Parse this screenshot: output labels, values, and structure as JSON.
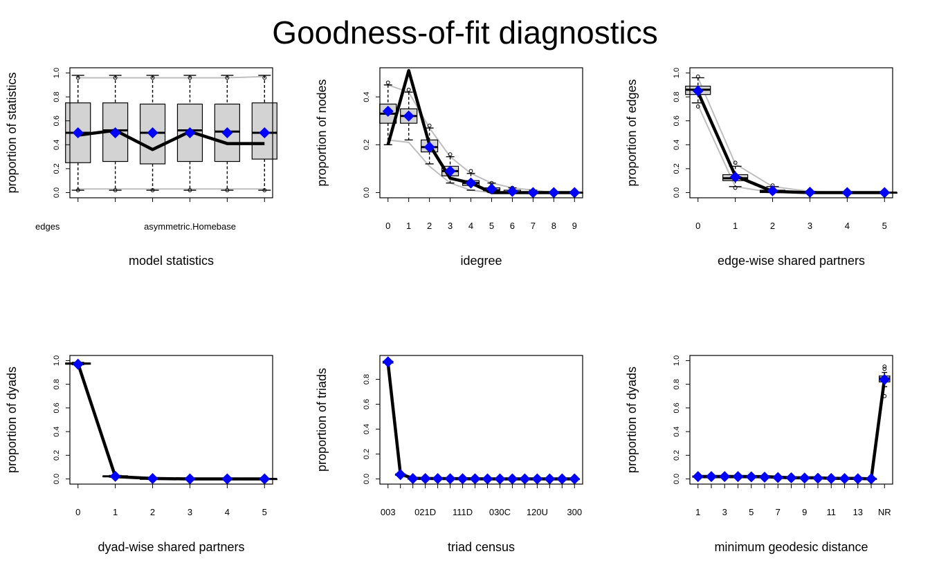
{
  "title": "Goodness-of-fit diagnostics",
  "colors": {
    "observed": "#000000",
    "model_mean": "#0000ff",
    "box_fill": "#d3d3d3",
    "sim_range": "#bebebe"
  },
  "chart_data": [
    {
      "type": "box",
      "xlabel": "model statistics",
      "ylabel": "proportion of statistics",
      "ylim": [
        0,
        1
      ],
      "yticks": [
        0.0,
        0.2,
        0.4,
        0.6,
        0.8,
        1.0
      ],
      "ytick_labels": [
        "0.0",
        "0.2",
        "0.4",
        "0.6",
        "0.8",
        "1.0"
      ],
      "xtick_labels": [
        "edges",
        "",
        "asymmetric.Homebase",
        "",
        "",
        ""
      ],
      "x": [
        1,
        2,
        3,
        4,
        5,
        6
      ],
      "box": {
        "q1": [
          0.25,
          0.26,
          0.24,
          0.26,
          0.26,
          0.28
        ],
        "median": [
          0.5,
          0.52,
          0.5,
          0.52,
          0.51,
          0.5
        ],
        "q3": [
          0.75,
          0.75,
          0.74,
          0.74,
          0.74,
          0.75
        ],
        "whisker_low": [
          0.02,
          0.02,
          0.02,
          0.02,
          0.02,
          0.02
        ],
        "whisker_high": [
          0.98,
          0.98,
          0.98,
          0.98,
          0.98,
          0.98
        ]
      },
      "outliers": [
        [
          0.02,
          0.96
        ],
        [
          0.02,
          0.96
        ],
        [
          0.02,
          0.96
        ],
        [
          0.02,
          0.96
        ],
        [
          0.02,
          0.96
        ],
        [
          0.02,
          0.96
        ]
      ],
      "observed": [
        0.48,
        0.52,
        0.36,
        0.51,
        0.41,
        0.41
      ],
      "model_mean": [
        0.5,
        0.5,
        0.5,
        0.5,
        0.5,
        0.5
      ],
      "sim_upper": [
        0.96,
        0.96,
        0.96,
        0.96,
        0.96,
        0.97
      ],
      "sim_lower": [
        0.03,
        0.03,
        0.03,
        0.03,
        0.03,
        0.03
      ]
    },
    {
      "type": "box",
      "xlabel": "idegree",
      "ylabel": "proportion of nodes",
      "ylim": [
        0,
        0.5
      ],
      "yticks": [
        0.0,
        0.2,
        0.4
      ],
      "ytick_labels": [
        "0.0",
        "0.2",
        "0.4"
      ],
      "xtick_labels": [
        "0",
        "1",
        "2",
        "3",
        "4",
        "5",
        "6",
        "7",
        "8",
        "9"
      ],
      "x": [
        1,
        2,
        3,
        4,
        5,
        6,
        7,
        8,
        9,
        10
      ],
      "box": {
        "q1": [
          0.29,
          0.29,
          0.17,
          0.07,
          0.03,
          0.01,
          0.0,
          0.0,
          0.0,
          0.0
        ],
        "median": [
          0.33,
          0.32,
          0.19,
          0.09,
          0.04,
          0.01,
          0.0,
          0.0,
          0.0,
          0.0
        ],
        "q3": [
          0.37,
          0.35,
          0.22,
          0.11,
          0.05,
          0.02,
          0.01,
          0.0,
          0.0,
          0.0
        ],
        "whisker_low": [
          0.2,
          0.22,
          0.12,
          0.04,
          0.01,
          0.0,
          0.0,
          0.0,
          0.0,
          0.0
        ],
        "whisker_high": [
          0.45,
          0.42,
          0.27,
          0.15,
          0.08,
          0.04,
          0.02,
          0.01,
          0.0,
          0.0
        ]
      },
      "outliers": [
        [
          0.46
        ],
        [
          0.43
        ],
        [
          0.28
        ],
        [
          0.16
        ],
        [
          0.09
        ],
        [
          0.04
        ],
        [
          0.02
        ],
        [
          0.01
        ],
        [],
        []
      ],
      "observed": [
        0.2,
        0.51,
        0.2,
        0.06,
        0.04,
        0.0,
        0.0,
        0.0,
        0.0,
        0.0
      ],
      "model_mean": [
        0.34,
        0.32,
        0.19,
        0.09,
        0.04,
        0.015,
        0.005,
        0.0,
        0.0,
        0.0
      ],
      "sim_upper": [
        0.45,
        0.42,
        0.27,
        0.15,
        0.08,
        0.04,
        0.02,
        0.01,
        0.0,
        0.0
      ],
      "sim_lower": [
        0.22,
        0.21,
        0.11,
        0.04,
        0.01,
        0.0,
        0.0,
        0.0,
        0.0,
        0.0
      ]
    },
    {
      "type": "box",
      "xlabel": "edge-wise shared partners",
      "ylabel": "proportion of edges",
      "ylim": [
        0,
        1
      ],
      "yticks": [
        0.0,
        0.2,
        0.4,
        0.6,
        0.8,
        1.0
      ],
      "ytick_labels": [
        "0.0",
        "0.2",
        "0.4",
        "0.6",
        "0.8",
        "1.0"
      ],
      "xtick_labels": [
        "0",
        "1",
        "2",
        "3",
        "4",
        "5"
      ],
      "x": [
        1,
        2,
        3,
        4,
        5,
        6
      ],
      "box": {
        "q1": [
          0.82,
          0.1,
          0.0,
          0.0,
          0.0,
          0.0
        ],
        "median": [
          0.86,
          0.12,
          0.01,
          0.0,
          0.0,
          0.0
        ],
        "q3": [
          0.89,
          0.15,
          0.02,
          0.0,
          0.0,
          0.0
        ],
        "whisker_low": [
          0.75,
          0.05,
          0.0,
          0.0,
          0.0,
          0.0
        ],
        "whisker_high": [
          0.96,
          0.22,
          0.05,
          0.01,
          0.0,
          0.0
        ]
      },
      "outliers": [
        [
          0.72,
          0.97
        ],
        [
          0.04,
          0.25
        ],
        [
          0.06
        ],
        [],
        [],
        []
      ],
      "observed": [
        0.84,
        0.14,
        0.01,
        0.0,
        0.0,
        0.0
      ],
      "model_mean": [
        0.85,
        0.13,
        0.015,
        0.003,
        0.0,
        0.0
      ],
      "sim_upper": [
        0.96,
        0.24,
        0.05,
        0.01,
        0.0,
        0.0
      ],
      "sim_lower": [
        0.73,
        0.05,
        0.0,
        0.0,
        0.0,
        0.0
      ]
    },
    {
      "type": "box",
      "xlabel": "dyad-wise shared partners",
      "ylabel": "proportion of dyads",
      "ylim": [
        0,
        1
      ],
      "yticks": [
        0.0,
        0.2,
        0.4,
        0.6,
        0.8,
        1.0
      ],
      "ytick_labels": [
        "0.0",
        "0.2",
        "0.4",
        "0.6",
        "0.8",
        "1.0"
      ],
      "xtick_labels": [
        "0",
        "1",
        "2",
        "3",
        "4",
        "5"
      ],
      "x": [
        1,
        2,
        3,
        4,
        5,
        6
      ],
      "box": {
        "q1": [
          0.97,
          0.02,
          0.0,
          0.0,
          0.0,
          0.0
        ],
        "median": [
          0.975,
          0.022,
          0.002,
          0.0,
          0.0,
          0.0
        ],
        "q3": [
          0.98,
          0.025,
          0.003,
          0.0,
          0.0,
          0.0
        ],
        "whisker_low": [
          0.965,
          0.015,
          0.0,
          0.0,
          0.0,
          0.0
        ],
        "whisker_high": [
          0.985,
          0.03,
          0.005,
          0.0,
          0.0,
          0.0
        ]
      },
      "outliers": [
        [],
        [],
        [],
        [],
        [],
        []
      ],
      "observed": [
        0.975,
        0.02,
        0.004,
        0.0,
        0.0,
        0.0
      ],
      "model_mean": [
        0.97,
        0.022,
        0.003,
        0.0,
        0.0,
        0.0
      ],
      "sim_upper": [
        0.985,
        0.03,
        0.005,
        0.0,
        0.0,
        0.0
      ],
      "sim_lower": [
        0.965,
        0.015,
        0.0,
        0.0,
        0.0,
        0.0
      ]
    },
    {
      "type": "box",
      "xlabel": "triad census",
      "ylabel": "proportion of triads",
      "ylim": [
        0,
        0.95
      ],
      "yticks": [
        0.0,
        0.2,
        0.4,
        0.6,
        0.8
      ],
      "ytick_labels": [
        "0.0",
        "0.2",
        "0.4",
        "0.6",
        "0.8"
      ],
      "xtick_labels": [
        "003",
        "",
        "",
        "021D",
        "",
        "",
        "111D",
        "",
        "",
        "030C",
        "",
        "",
        "120U",
        "",
        "",
        "300"
      ],
      "x": [
        1,
        2,
        3,
        4,
        5,
        6,
        7,
        8,
        9,
        10,
        11,
        12,
        13,
        14,
        15,
        16
      ],
      "box": {
        "q1": [
          0.93,
          0.03,
          0.0,
          0.0,
          0.0,
          0.0,
          0.0,
          0.0,
          0.0,
          0.0,
          0.0,
          0.0,
          0.0,
          0.0,
          0.0,
          0.0
        ],
        "median": [
          0.94,
          0.035,
          0.003,
          0.003,
          0.003,
          0.002,
          0.002,
          0.001,
          0.0,
          0.0,
          0.0,
          0.0,
          0.0,
          0.0,
          0.0,
          0.0
        ],
        "q3": [
          0.945,
          0.04,
          0.005,
          0.005,
          0.005,
          0.003,
          0.003,
          0.002,
          0.0,
          0.0,
          0.0,
          0.0,
          0.0,
          0.0,
          0.0,
          0.0
        ],
        "whisker_low": [
          0.92,
          0.025,
          0.0,
          0.0,
          0.0,
          0.0,
          0.0,
          0.0,
          0.0,
          0.0,
          0.0,
          0.0,
          0.0,
          0.0,
          0.0,
          0.0
        ],
        "whisker_high": [
          0.95,
          0.045,
          0.008,
          0.008,
          0.008,
          0.005,
          0.005,
          0.003,
          0.0,
          0.0,
          0.0,
          0.0,
          0.0,
          0.0,
          0.0,
          0.0
        ]
      },
      "outliers": [
        [],
        [],
        [],
        [],
        [],
        [],
        [],
        [],
        [],
        [],
        [],
        [],
        [],
        [],
        [],
        []
      ],
      "observed": [
        0.93,
        0.04,
        0.005,
        0.004,
        0.003,
        0.003,
        0.002,
        0.001,
        0.0,
        0.0,
        0.0,
        0.0,
        0.0,
        0.0,
        0.0,
        0.0
      ],
      "model_mean": [
        0.94,
        0.035,
        0.003,
        0.003,
        0.003,
        0.002,
        0.002,
        0.001,
        0.0,
        0.0,
        0.0,
        0.0,
        0.0,
        0.0,
        0.0,
        0.0
      ],
      "sim_upper": [
        0.95,
        0.045,
        0.008,
        0.008,
        0.008,
        0.005,
        0.005,
        0.003,
        0.0,
        0.0,
        0.0,
        0.0,
        0.0,
        0.0,
        0.0,
        0.0
      ],
      "sim_lower": [
        0.92,
        0.025,
        0.0,
        0.0,
        0.0,
        0.0,
        0.0,
        0.0,
        0.0,
        0.0,
        0.0,
        0.0,
        0.0,
        0.0,
        0.0,
        0.0
      ]
    },
    {
      "type": "box",
      "xlabel": "minimum geodesic distance",
      "ylabel": "proportion of dyads",
      "ylim": [
        0,
        1
      ],
      "yticks": [
        0.0,
        0.2,
        0.4,
        0.6,
        0.8,
        1.0
      ],
      "ytick_labels": [
        "0.0",
        "0.2",
        "0.4",
        "0.6",
        "0.8",
        "1.0"
      ],
      "xtick_labels": [
        "1",
        "",
        "3",
        "",
        "5",
        "",
        "7",
        "",
        "9",
        "",
        "11",
        "",
        "13",
        "",
        "NR"
      ],
      "x": [
        1,
        2,
        3,
        4,
        5,
        6,
        7,
        8,
        9,
        10,
        11,
        12,
        13,
        14,
        15
      ],
      "box": {
        "q1": [
          0.015,
          0.015,
          0.015,
          0.015,
          0.012,
          0.01,
          0.008,
          0.006,
          0.005,
          0.004,
          0.003,
          0.002,
          0.001,
          0.0,
          0.82
        ],
        "median": [
          0.02,
          0.02,
          0.02,
          0.02,
          0.018,
          0.015,
          0.012,
          0.01,
          0.008,
          0.006,
          0.004,
          0.003,
          0.002,
          0.001,
          0.85
        ],
        "q3": [
          0.025,
          0.025,
          0.025,
          0.025,
          0.022,
          0.02,
          0.016,
          0.013,
          0.01,
          0.008,
          0.006,
          0.004,
          0.003,
          0.002,
          0.87
        ],
        "whisker_low": [
          0.01,
          0.01,
          0.01,
          0.01,
          0.008,
          0.006,
          0.004,
          0.002,
          0.001,
          0.0,
          0.0,
          0.0,
          0.0,
          0.0,
          0.78
        ],
        "whisker_high": [
          0.03,
          0.03,
          0.03,
          0.03,
          0.028,
          0.025,
          0.02,
          0.017,
          0.013,
          0.01,
          0.008,
          0.006,
          0.004,
          0.003,
          0.9
        ]
      },
      "outliers": [
        [],
        [],
        [],
        [],
        [],
        [],
        [],
        [],
        [],
        [],
        [],
        [],
        [],
        [],
        [
          0.7,
          0.93,
          0.95
        ]
      ],
      "observed": [
        0.02,
        0.02,
        0.02,
        0.02,
        0.02,
        0.02,
        0.015,
        0.01,
        0.01,
        0.01,
        0.005,
        0.005,
        0.005,
        0.0,
        0.85
      ],
      "model_mean": [
        0.02,
        0.02,
        0.02,
        0.02,
        0.018,
        0.015,
        0.012,
        0.01,
        0.008,
        0.006,
        0.004,
        0.003,
        0.002,
        0.001,
        0.84
      ],
      "sim_upper": [
        0.03,
        0.03,
        0.03,
        0.03,
        0.028,
        0.025,
        0.02,
        0.017,
        0.013,
        0.01,
        0.008,
        0.006,
        0.004,
        0.003,
        0.9
      ],
      "sim_lower": [
        0.01,
        0.01,
        0.01,
        0.01,
        0.008,
        0.006,
        0.004,
        0.002,
        0.001,
        0.0,
        0.0,
        0.0,
        0.0,
        0.0,
        0.78
      ]
    }
  ]
}
